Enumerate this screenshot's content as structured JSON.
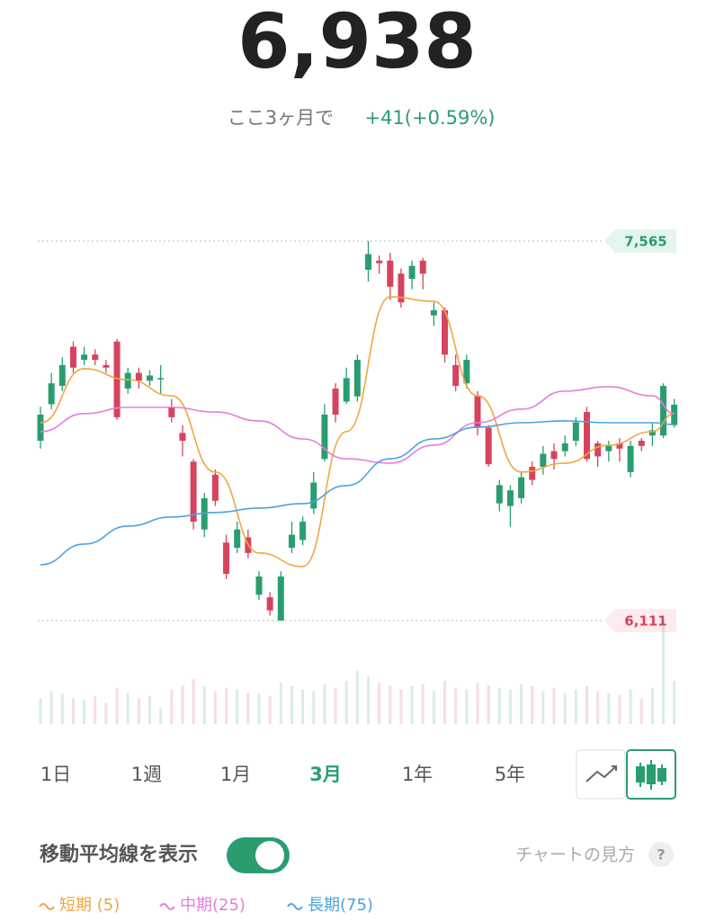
{
  "header": {
    "price": "6,938",
    "period_label": "ここ3ヶ月で",
    "change": "+41(+0.59%)"
  },
  "chart_data": {
    "type": "candlestick",
    "open": [
      6800,
      6940,
      7010,
      7160,
      7110,
      7130,
      7090,
      7180,
      7000,
      7060,
      7030,
      7040,
      6930,
      6830,
      6720,
      6460,
      6670,
      6410,
      6390,
      6430,
      6210,
      6200,
      6111,
      6390,
      6420,
      6540,
      6730,
      7000,
      6950,
      6970,
      7455,
      7490,
      7490,
      7440,
      7420,
      7490,
      7280,
      7300,
      7090,
      7020,
      6970,
      6850,
      6560,
      6550,
      6580,
      6700,
      6700,
      6760,
      6760,
      6800,
      6910,
      6790,
      6760,
      6790,
      6680,
      6800,
      6820,
      6820,
      6860
    ],
    "high": [
      6930,
      7060,
      7120,
      7180,
      7160,
      7150,
      7110,
      7190,
      7080,
      7080,
      7070,
      7090,
      6960,
      6860,
      6730,
      6600,
      6690,
      6440,
      6490,
      6460,
      6300,
      6220,
      6300,
      6490,
      6510,
      6680,
      6940,
      7020,
      7080,
      7130,
      7565,
      7510,
      7520,
      7460,
      7490,
      7500,
      7330,
      7310,
      7130,
      7130,
      6990,
      6860,
      6650,
      6630,
      6680,
      6720,
      6780,
      6790,
      6820,
      6890,
      6930,
      6800,
      6800,
      6810,
      6800,
      6810,
      6870,
      7020,
      6960
    ],
    "low": [
      6770,
      6920,
      6990,
      7060,
      7090,
      7090,
      7060,
      6880,
      6980,
      7000,
      7010,
      6980,
      6870,
      6740,
      6460,
      6430,
      6550,
      6270,
      6370,
      6350,
      6190,
      6130,
      6111,
      6370,
      6400,
      6520,
      6720,
      6870,
      6940,
      6950,
      7410,
      7440,
      7340,
      7310,
      7380,
      7380,
      7240,
      7100,
      6990,
      7000,
      6820,
      6700,
      6530,
      6470,
      6560,
      6630,
      6670,
      6690,
      6740,
      6780,
      6720,
      6700,
      6720,
      6720,
      6660,
      6760,
      6780,
      6810,
      6850
    ],
    "close": [
      6900,
      7020,
      7090,
      7080,
      7130,
      7110,
      7080,
      6890,
      7060,
      7030,
      7050,
      7040,
      6890,
      6800,
      6490,
      6580,
      6570,
      6290,
      6460,
      6370,
      6280,
      6150,
      6280,
      6440,
      6490,
      6640,
      6900,
      6900,
      7040,
      7110,
      7515,
      7480,
      7390,
      7330,
      7470,
      7440,
      7300,
      7130,
      7010,
      7110,
      6850,
      6710,
      6630,
      6610,
      6660,
      6650,
      6750,
      6730,
      6790,
      6870,
      6730,
      6740,
      6780,
      6770,
      6780,
      6780,
      6840,
      7010,
      6938
    ],
    "volume": [
      30,
      38,
      35,
      30,
      28,
      32,
      25,
      42,
      36,
      30,
      33,
      18,
      40,
      45,
      52,
      44,
      38,
      42,
      40,
      36,
      35,
      32,
      48,
      44,
      40,
      38,
      46,
      42,
      50,
      62,
      55,
      48,
      45,
      40,
      44,
      46,
      38,
      50,
      42,
      40,
      48,
      45,
      42,
      40,
      46,
      44,
      38,
      42,
      36,
      40,
      44,
      38,
      36,
      34,
      40,
      30,
      42,
      120,
      50
    ],
    "high_label": {
      "value": 7565,
      "label": "7,565"
    },
    "low_label": {
      "value": 6111,
      "label": "6,111"
    },
    "up_color": "#2a9d6f",
    "down_color": "#d6435d",
    "series": [
      {
        "name": "短期 (5)",
        "color": "#f0a640",
        "x": [
          0,
          4,
          8,
          12,
          16,
          20,
          24,
          28,
          32,
          36,
          40,
          44,
          48,
          52,
          56,
          58
        ],
        "values": [
          6869,
          7076,
          7034,
          6972,
          6680,
          6370,
          6318,
          6835,
          7351,
          7334,
          6972,
          6680,
          6714,
          6783,
          6835,
          6904
        ]
      },
      {
        "name": "中期(25)",
        "color": "#e47ddb",
        "x": [
          0,
          4,
          8,
          12,
          16,
          20,
          24,
          28,
          32,
          36,
          40,
          44,
          48,
          52,
          56,
          58
        ],
        "values": [
          6835,
          6904,
          6928,
          6928,
          6910,
          6876,
          6807,
          6731,
          6714,
          6783,
          6869,
          6921,
          6990,
          7007,
          6972,
          6904
        ]
      },
      {
        "name": "長期(75)",
        "color": "#4aa3e0",
        "x": [
          0,
          4,
          8,
          12,
          16,
          20,
          24,
          28,
          32,
          36,
          40,
          44,
          48,
          52,
          56,
          58
        ],
        "values": [
          6325,
          6404,
          6473,
          6508,
          6525,
          6542,
          6559,
          6628,
          6731,
          6807,
          6852,
          6869,
          6876,
          6869,
          6869,
          6862
        ]
      }
    ]
  },
  "tabs": [
    "1日",
    "1週",
    "1月",
    "3月",
    "1年",
    "5年"
  ],
  "active_tab": 3,
  "toggle": {
    "label": "移動平均線を表示",
    "on": true
  },
  "help": {
    "label": "チャートの見方",
    "icon": "?"
  }
}
